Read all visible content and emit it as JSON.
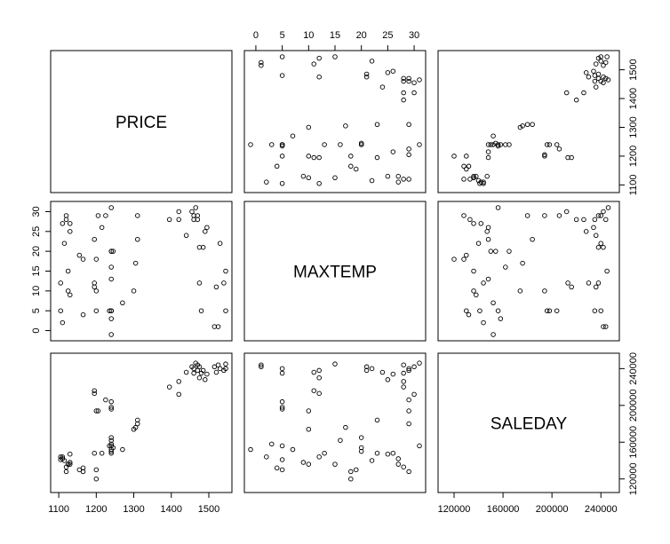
{
  "chart_data": {
    "type": "scatter",
    "variables": [
      "PRICE",
      "MAXTEMP",
      "SALEDAY"
    ],
    "axis_ticks": {
      "PRICE": [
        "1100",
        "1200",
        "1300",
        "1400",
        "1500"
      ],
      "MAXTEMP": [
        "0",
        "5",
        "10",
        "15",
        "20",
        "25",
        "30"
      ],
      "SALEDAY": [
        "120000",
        "160000",
        "200000",
        "240000"
      ]
    },
    "ranges": {
      "PRICE": [
        1095,
        1545
      ],
      "MAXTEMP": [
        -1,
        31
      ],
      "SALEDAY": [
        112000,
        250000
      ]
    },
    "observations": [
      {
        "PRICE": 1525,
        "MAXTEMP": 1,
        "SALEDAY": 244000
      },
      {
        "PRICE": 1515,
        "MAXTEMP": 1,
        "SALEDAY": 242000
      },
      {
        "PRICE": 1545,
        "MAXTEMP": 5,
        "SALEDAY": 240000
      },
      {
        "PRICE": 1480,
        "MAXTEMP": 5,
        "SALEDAY": 235000
      },
      {
        "PRICE": 1520,
        "MAXTEMP": 11,
        "SALEDAY": 236000
      },
      {
        "PRICE": 1540,
        "MAXTEMP": 12,
        "SALEDAY": 238000
      },
      {
        "PRICE": 1475,
        "MAXTEMP": 12,
        "SALEDAY": 230000
      },
      {
        "PRICE": 1545,
        "MAXTEMP": 15,
        "SALEDAY": 245000
      },
      {
        "PRICE": 1530,
        "MAXTEMP": 22,
        "SALEDAY": 240000
      },
      {
        "PRICE": 1475,
        "MAXTEMP": 21,
        "SALEDAY": 242000
      },
      {
        "PRICE": 1485,
        "MAXTEMP": 21,
        "SALEDAY": 238000
      },
      {
        "PRICE": 1490,
        "MAXTEMP": 25,
        "SALEDAY": 228000
      },
      {
        "PRICE": 1440,
        "MAXTEMP": 24,
        "SALEDAY": 236000
      },
      {
        "PRICE": 1495,
        "MAXTEMP": 26,
        "SALEDAY": 234000
      },
      {
        "PRICE": 1470,
        "MAXTEMP": 28,
        "SALEDAY": 244000
      },
      {
        "PRICE": 1460,
        "MAXTEMP": 29,
        "SALEDAY": 240000
      },
      {
        "PRICE": 1470,
        "MAXTEMP": 29,
        "SALEDAY": 238000
      },
      {
        "PRICE": 1420,
        "MAXTEMP": 28,
        "SALEDAY": 226000
      },
      {
        "PRICE": 1395,
        "MAXTEMP": 28,
        "SALEDAY": 220000
      },
      {
        "PRICE": 1465,
        "MAXTEMP": 31,
        "SALEDAY": 246000
      },
      {
        "PRICE": 1455,
        "MAXTEMP": 30,
        "SALEDAY": 242000
      },
      {
        "PRICE": 1420,
        "MAXTEMP": 30,
        "SALEDAY": 212000
      },
      {
        "PRICE": 1460,
        "MAXTEMP": 28,
        "SALEDAY": 235000
      },
      {
        "PRICE": 1310,
        "MAXTEMP": 23,
        "SALEDAY": 184000
      },
      {
        "PRICE": 1310,
        "MAXTEMP": 29,
        "SALEDAY": 180000
      },
      {
        "PRICE": 1305,
        "MAXTEMP": 17,
        "SALEDAY": 176000
      },
      {
        "PRICE": 1300,
        "MAXTEMP": 10,
        "SALEDAY": 174000
      },
      {
        "PRICE": 1270,
        "MAXTEMP": 7,
        "SALEDAY": 152000
      },
      {
        "PRICE": 1240,
        "MAXTEMP": 5,
        "SALEDAY": 204000
      },
      {
        "PRICE": 1240,
        "MAXTEMP": 5,
        "SALEDAY": 198000
      },
      {
        "PRICE": 1240,
        "MAXTEMP": 5,
        "SALEDAY": 196000
      },
      {
        "PRICE": 1240,
        "MAXTEMP": 3,
        "SALEDAY": 158000
      },
      {
        "PRICE": 1240,
        "MAXTEMP": 16,
        "SALEDAY": 162000
      },
      {
        "PRICE": 1240,
        "MAXTEMP": 20,
        "SALEDAY": 165000
      },
      {
        "PRICE": 1240,
        "MAXTEMP": 20,
        "SALEDAY": 150000
      },
      {
        "PRICE": 1240,
        "MAXTEMP": 13,
        "SALEDAY": 148000
      },
      {
        "PRICE": 1240,
        "MAXTEMP": 31,
        "SALEDAY": 156000
      },
      {
        "PRICE": 1240,
        "MAXTEMP": -1,
        "SALEDAY": 152000
      },
      {
        "PRICE": 1235,
        "MAXTEMP": 5,
        "SALEDAY": 156000
      },
      {
        "PRICE": 1245,
        "MAXTEMP": 20,
        "SALEDAY": 154000
      },
      {
        "PRICE": 1225,
        "MAXTEMP": 29,
        "SALEDAY": 206000
      },
      {
        "PRICE": 1215,
        "MAXTEMP": 26,
        "SALEDAY": 148000
      },
      {
        "PRICE": 1205,
        "MAXTEMP": 29,
        "SALEDAY": 194000
      },
      {
        "PRICE": 1200,
        "MAXTEMP": 10,
        "SALEDAY": 194000
      },
      {
        "PRICE": 1195,
        "MAXTEMP": 12,
        "SALEDAY": 213000
      },
      {
        "PRICE": 1195,
        "MAXTEMP": 11,
        "SALEDAY": 216000
      },
      {
        "PRICE": 1195,
        "MAXTEMP": 23,
        "SALEDAY": 148000
      },
      {
        "PRICE": 1200,
        "MAXTEMP": 18,
        "SALEDAY": 120000
      },
      {
        "PRICE": 1200,
        "MAXTEMP": 5,
        "SALEDAY": 130000
      },
      {
        "PRICE": 1165,
        "MAXTEMP": 4,
        "SALEDAY": 132000
      },
      {
        "PRICE": 1165,
        "MAXTEMP": 18,
        "SALEDAY": 128000
      },
      {
        "PRICE": 1155,
        "MAXTEMP": 19,
        "SALEDAY": 130000
      },
      {
        "PRICE": 1130,
        "MAXTEMP": 25,
        "SALEDAY": 147000
      },
      {
        "PRICE": 1130,
        "MAXTEMP": 27,
        "SALEDAY": 136000
      },
      {
        "PRICE": 1130,
        "MAXTEMP": 9,
        "SALEDAY": 138000
      },
      {
        "PRICE": 1125,
        "MAXTEMP": 15,
        "SALEDAY": 136000
      },
      {
        "PRICE": 1125,
        "MAXTEMP": 10,
        "SALEDAY": 136000
      },
      {
        "PRICE": 1120,
        "MAXTEMP": 29,
        "SALEDAY": 128000
      },
      {
        "PRICE": 1120,
        "MAXTEMP": 28,
        "SALEDAY": 133000
      },
      {
        "PRICE": 1115,
        "MAXTEMP": 22,
        "SALEDAY": 140000
      },
      {
        "PRICE": 1110,
        "MAXTEMP": 27,
        "SALEDAY": 142000
      },
      {
        "PRICE": 1105,
        "MAXTEMP": 5,
        "SALEDAY": 141000
      },
      {
        "PRICE": 1105,
        "MAXTEMP": 12,
        "SALEDAY": 144000
      },
      {
        "PRICE": 1110,
        "MAXTEMP": 2,
        "SALEDAY": 144000
      }
    ]
  }
}
